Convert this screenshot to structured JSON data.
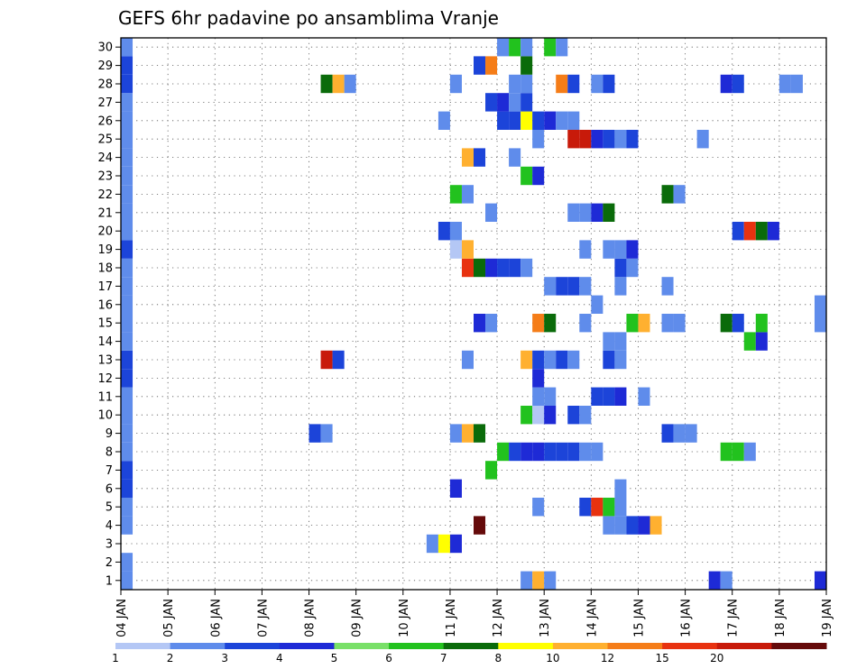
{
  "chart_data": {
    "type": "heatmap",
    "title": "GEFS 6hr padavine po ansamblima Vranje",
    "xlabel": "",
    "ylabel": "",
    "x_ticks": [
      "04 JAN",
      "05 JAN",
      "06 JAN",
      "07 JAN",
      "08 JAN",
      "09 JAN",
      "10 JAN",
      "11 JAN",
      "12 JAN",
      "13 JAN",
      "14 JAN",
      "15 JAN",
      "16 JAN",
      "17 JAN",
      "18 JAN",
      "19 JAN"
    ],
    "y_ticks": [
      "1",
      "2",
      "3",
      "4",
      "5",
      "6",
      "7",
      "8",
      "9",
      "10",
      "11",
      "12",
      "13",
      "14",
      "15",
      "16",
      "17",
      "18",
      "19",
      "20",
      "21",
      "22",
      "23",
      "24",
      "25",
      "26",
      "27",
      "28",
      "29",
      "30"
    ],
    "xlim": [
      0,
      60
    ],
    "ylim": [
      0.5,
      30.5
    ],
    "grid": true,
    "x_unit": "6-hour steps from 04 JAN 00Z",
    "y_unit": "ensemble member",
    "colorbar": {
      "labels": [
        "1",
        "2",
        "3",
        "4",
        "5",
        "6",
        "7",
        "8",
        "10",
        "12",
        "15",
        "20"
      ],
      "colors": [
        "#b4c7f5",
        "#5f8ceb",
        "#1c44d9",
        "#1e2ad6",
        "#79e068",
        "#22c21e",
        "#0a6b0a",
        "#ffff00",
        "#ffb030",
        "#f57d18",
        "#e83210",
        "#c81a0a",
        "#650a0a"
      ]
    },
    "cells": [
      {
        "m": 1,
        "s": [
          [
            0,
            2,
            1
          ],
          [
            34,
            2,
            1
          ],
          [
            35,
            2,
            8
          ],
          [
            36,
            2,
            1
          ],
          [
            50,
            2,
            3
          ],
          [
            51,
            2,
            1
          ],
          [
            59,
            2,
            3
          ]
        ]
      },
      {
        "m": 2,
        "s": [
          [
            0,
            2,
            1
          ]
        ]
      },
      {
        "m": 3,
        "s": [
          [
            26,
            2,
            1
          ],
          [
            27,
            2,
            7
          ],
          [
            28,
            2,
            3
          ]
        ]
      },
      {
        "m": 4,
        "s": [
          [
            0,
            2,
            1
          ],
          [
            30,
            2,
            12
          ],
          [
            41,
            2,
            1
          ],
          [
            42,
            2,
            1
          ],
          [
            43,
            2,
            2
          ],
          [
            44,
            2,
            3
          ],
          [
            45,
            2,
            8
          ]
        ]
      },
      {
        "m": 5,
        "s": [
          [
            0,
            2,
            1
          ],
          [
            35,
            2,
            1
          ],
          [
            39,
            2,
            2
          ],
          [
            40,
            2,
            10
          ],
          [
            41,
            2,
            5
          ],
          [
            42,
            2,
            1
          ]
        ]
      },
      {
        "m": 6,
        "s": [
          [
            0,
            2,
            2
          ],
          [
            28,
            2,
            3
          ],
          [
            42,
            2,
            1
          ]
        ]
      },
      {
        "m": 7,
        "s": [
          [
            0,
            2,
            2
          ],
          [
            31,
            2,
            5
          ]
        ]
      },
      {
        "m": 8,
        "s": [
          [
            0,
            2,
            1
          ],
          [
            32,
            2,
            5
          ],
          [
            33,
            2,
            2
          ],
          [
            34,
            2,
            3
          ],
          [
            35,
            2,
            3
          ],
          [
            36,
            2,
            2
          ],
          [
            37,
            2,
            2
          ],
          [
            38,
            2,
            2
          ],
          [
            39,
            2,
            1
          ],
          [
            40,
            2,
            1
          ],
          [
            51,
            2,
            5
          ],
          [
            52,
            2,
            5
          ],
          [
            53,
            2,
            1
          ]
        ]
      },
      {
        "m": 9,
        "s": [
          [
            0,
            2,
            1
          ],
          [
            16,
            2,
            2
          ],
          [
            17,
            2,
            1
          ],
          [
            28,
            2,
            1
          ],
          [
            29,
            2,
            8
          ],
          [
            30,
            2,
            6
          ],
          [
            46,
            2,
            2
          ],
          [
            47,
            2,
            1
          ],
          [
            48,
            2,
            1
          ]
        ]
      },
      {
        "m": 10,
        "s": [
          [
            0,
            2,
            1
          ],
          [
            34,
            2,
            5
          ],
          [
            35,
            2,
            14
          ],
          [
            36,
            2,
            3
          ],
          [
            38,
            2,
            2
          ],
          [
            39,
            2,
            1
          ]
        ]
      },
      {
        "m": 11,
        "s": [
          [
            0,
            2,
            1
          ],
          [
            35,
            2,
            1
          ],
          [
            36,
            2,
            1
          ],
          [
            40,
            2,
            2
          ],
          [
            41,
            2,
            2
          ],
          [
            42,
            2,
            3
          ],
          [
            44,
            2,
            1
          ]
        ]
      },
      {
        "m": 12,
        "s": [
          [
            0,
            2,
            2
          ],
          [
            35,
            2,
            3
          ]
        ]
      },
      {
        "m": 13,
        "s": [
          [
            0,
            2,
            2
          ],
          [
            17,
            2,
            11
          ],
          [
            18,
            2,
            2
          ],
          [
            29,
            2,
            1
          ],
          [
            34,
            2,
            8
          ],
          [
            35,
            2,
            2
          ],
          [
            36,
            2,
            1
          ],
          [
            37,
            2,
            2
          ],
          [
            38,
            2,
            1
          ],
          [
            41,
            2,
            2
          ],
          [
            42,
            2,
            1
          ]
        ]
      },
      {
        "m": 14,
        "s": [
          [
            0,
            2,
            1
          ],
          [
            41,
            2,
            1
          ],
          [
            42,
            2,
            1
          ],
          [
            53,
            2,
            5
          ],
          [
            54,
            2,
            3
          ]
        ]
      },
      {
        "m": 15,
        "s": [
          [
            0,
            2,
            1
          ],
          [
            30,
            2,
            3
          ],
          [
            31,
            2,
            1
          ],
          [
            35,
            2,
            9
          ],
          [
            36,
            2,
            6
          ],
          [
            39,
            2,
            1
          ],
          [
            43,
            2,
            5
          ],
          [
            44,
            2,
            8
          ],
          [
            46,
            2,
            1
          ],
          [
            47,
            2,
            1
          ],
          [
            51,
            2,
            6
          ],
          [
            52,
            2,
            2
          ],
          [
            54,
            2,
            5
          ],
          [
            59,
            2,
            1
          ]
        ]
      },
      {
        "m": 16,
        "s": [
          [
            0,
            2,
            1
          ],
          [
            40,
            2,
            1
          ],
          [
            59,
            2,
            1
          ]
        ]
      },
      {
        "m": 17,
        "s": [
          [
            0,
            2,
            1
          ],
          [
            36,
            2,
            1
          ],
          [
            37,
            2,
            2
          ],
          [
            38,
            2,
            2
          ],
          [
            39,
            2,
            1
          ],
          [
            42,
            2,
            1
          ],
          [
            46,
            2,
            1
          ]
        ]
      },
      {
        "m": 18,
        "s": [
          [
            0,
            2,
            1
          ],
          [
            29,
            2,
            10
          ],
          [
            30,
            2,
            6
          ],
          [
            31,
            2,
            3
          ],
          [
            32,
            2,
            2
          ],
          [
            33,
            2,
            2
          ],
          [
            34,
            2,
            1
          ],
          [
            42,
            2,
            2
          ],
          [
            43,
            2,
            1
          ]
        ]
      },
      {
        "m": 19,
        "s": [
          [
            0,
            2,
            2
          ],
          [
            28,
            2,
            14
          ],
          [
            29,
            2,
            8
          ],
          [
            39,
            2,
            1
          ],
          [
            41,
            2,
            1
          ],
          [
            42,
            2,
            1
          ],
          [
            43,
            2,
            3
          ]
        ]
      },
      {
        "m": 20,
        "s": [
          [
            0,
            2,
            1
          ],
          [
            27,
            2,
            2
          ],
          [
            28,
            2,
            1
          ],
          [
            52,
            2,
            2
          ],
          [
            53,
            2,
            10
          ],
          [
            54,
            2,
            6
          ],
          [
            55,
            2,
            3
          ]
        ]
      },
      {
        "m": 21,
        "s": [
          [
            0,
            2,
            1
          ],
          [
            31,
            2,
            1
          ],
          [
            38,
            2,
            1
          ],
          [
            39,
            2,
            1
          ],
          [
            40,
            2,
            3
          ],
          [
            41,
            2,
            6
          ]
        ]
      },
      {
        "m": 22,
        "s": [
          [
            0,
            2,
            1
          ],
          [
            28,
            2,
            5
          ],
          [
            29,
            2,
            1
          ],
          [
            46,
            2,
            6
          ],
          [
            47,
            2,
            1
          ]
        ]
      },
      {
        "m": 23,
        "s": [
          [
            0,
            2,
            1
          ],
          [
            34,
            2,
            5
          ],
          [
            35,
            2,
            3
          ]
        ]
      },
      {
        "m": 24,
        "s": [
          [
            0,
            2,
            1
          ],
          [
            29,
            2,
            8
          ],
          [
            30,
            2,
            2
          ],
          [
            33,
            2,
            1
          ]
        ]
      },
      {
        "m": 25,
        "s": [
          [
            0,
            2,
            1
          ],
          [
            35,
            2,
            1
          ],
          [
            38,
            2,
            11
          ],
          [
            39,
            2,
            11
          ],
          [
            40,
            2,
            3
          ],
          [
            41,
            2,
            2
          ],
          [
            42,
            2,
            1
          ],
          [
            43,
            2,
            2
          ],
          [
            49,
            2,
            1
          ]
        ]
      },
      {
        "m": 26,
        "s": [
          [
            0,
            2,
            1
          ],
          [
            27,
            2,
            1
          ],
          [
            32,
            2,
            2
          ],
          [
            33,
            2,
            2
          ],
          [
            34,
            2,
            7
          ],
          [
            35,
            2,
            2
          ],
          [
            36,
            2,
            3
          ],
          [
            37,
            2,
            1
          ],
          [
            38,
            2,
            1
          ]
        ]
      },
      {
        "m": 27,
        "s": [
          [
            0,
            2,
            1
          ],
          [
            31,
            2,
            2
          ],
          [
            32,
            2,
            3
          ],
          [
            33,
            2,
            1
          ],
          [
            34,
            2,
            2
          ]
        ]
      },
      {
        "m": 28,
        "s": [
          [
            0,
            2,
            2
          ],
          [
            17,
            2,
            6
          ],
          [
            18,
            2,
            8
          ],
          [
            19,
            2,
            1
          ],
          [
            28,
            2,
            1
          ],
          [
            33,
            2,
            1
          ],
          [
            34,
            2,
            1
          ],
          [
            37,
            2,
            9
          ],
          [
            38,
            2,
            2
          ],
          [
            40,
            2,
            1
          ],
          [
            41,
            2,
            2
          ],
          [
            51,
            2,
            3
          ],
          [
            52,
            2,
            2
          ],
          [
            56,
            2,
            1
          ],
          [
            57,
            2,
            1
          ]
        ]
      },
      {
        "m": 29,
        "s": [
          [
            0,
            2,
            2
          ],
          [
            30,
            2,
            2
          ],
          [
            31,
            2,
            9
          ],
          [
            34,
            2,
            6
          ]
        ]
      },
      {
        "m": 30,
        "s": [
          [
            0,
            2,
            1
          ],
          [
            32,
            2,
            1
          ],
          [
            33,
            2,
            5
          ],
          [
            34,
            2,
            1
          ],
          [
            36,
            2,
            5
          ],
          [
            37,
            2,
            1
          ]
        ]
      }
    ]
  }
}
